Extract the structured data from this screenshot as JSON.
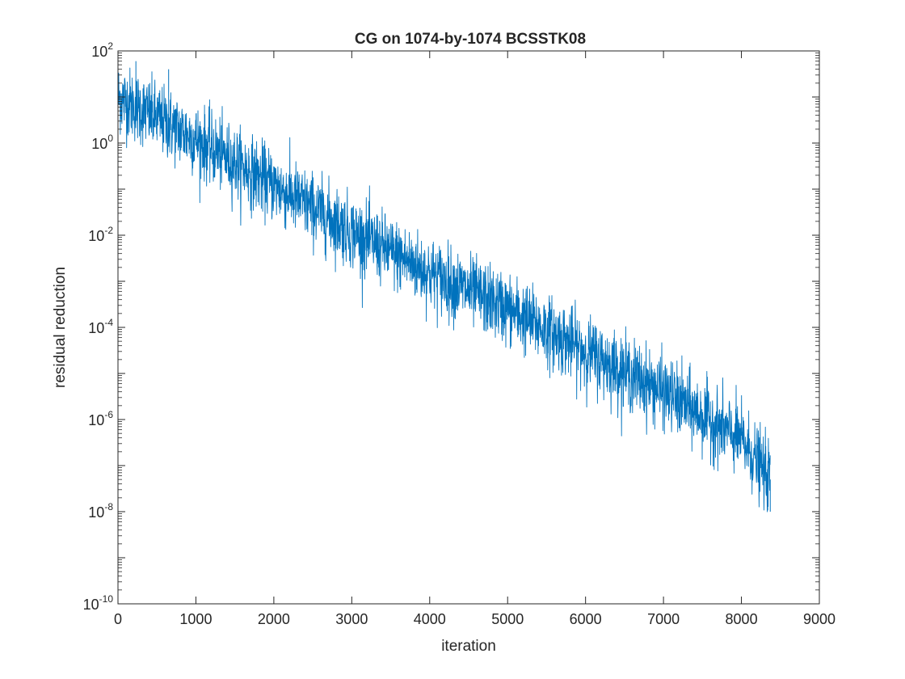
{
  "chart_data": {
    "type": "line",
    "title": "CG on 1074-by-1074 BCSSTK08",
    "xlabel": "iteration",
    "ylabel": "residual reduction",
    "xlim": [
      0,
      9000
    ],
    "ylim": [
      1e-10,
      100
    ],
    "yscale": "log",
    "grid": false,
    "legend": "none",
    "x_ticks": [
      "0",
      "1000",
      "2000",
      "3000",
      "4000",
      "5000",
      "6000",
      "7000",
      "8000",
      "9000"
    ],
    "y_ticks": [
      {
        "base": "10",
        "exp": "-10"
      },
      {
        "base": "10",
        "exp": "-8"
      },
      {
        "base": "10",
        "exp": "-6"
      },
      {
        "base": "10",
        "exp": "-4"
      },
      {
        "base": "10",
        "exp": "-2"
      },
      {
        "base": "10",
        "exp": "0"
      },
      {
        "base": "10",
        "exp": "2"
      }
    ],
    "series": [
      {
        "color": "#0072BD",
        "num_iterations": 8370,
        "trend": [
          {
            "x": 0,
            "y": 10
          },
          {
            "x": 1000,
            "y": 1.2
          },
          {
            "x": 2000,
            "y": 0.12
          },
          {
            "x": 3000,
            "y": 0.012
          },
          {
            "x": 4000,
            "y": 0.0015
          },
          {
            "x": 5000,
            "y": 0.00025
          },
          {
            "x": 6000,
            "y": 3e-05
          },
          {
            "x": 7000,
            "y": 4e-06
          },
          {
            "x": 8000,
            "y": 3.5e-07
          },
          {
            "x": 8370,
            "y": 5e-08
          }
        ],
        "spread_decades": 0.38,
        "extremes": [
          {
            "x": 230,
            "y": 60
          },
          {
            "x": 650,
            "y": 40
          },
          {
            "x": 8370,
            "y": 1e-08
          }
        ]
      }
    ]
  }
}
